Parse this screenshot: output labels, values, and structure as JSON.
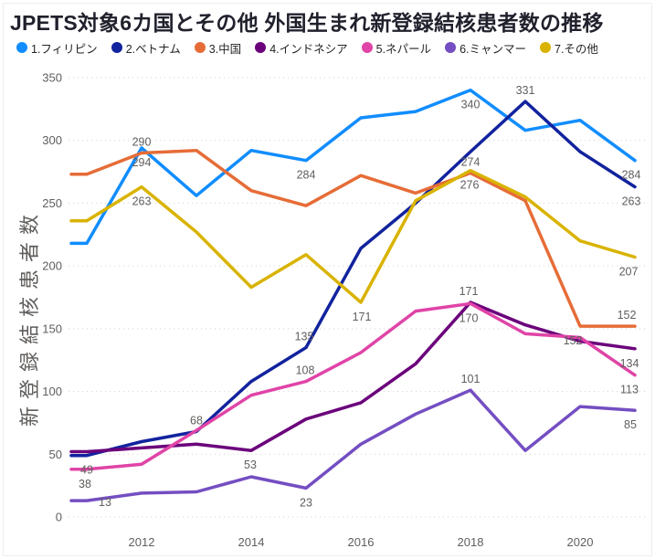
{
  "chart_data": {
    "type": "line",
    "title": "JPETS対象6カ国とその他 外国生まれ新登録結核患者数の推移",
    "ylabel": "新登録結核患者数",
    "xlabel": "",
    "x": [
      2011,
      2012,
      2013,
      2014,
      2015,
      2016,
      2017,
      2018,
      2019,
      2020,
      2021
    ],
    "x_tick_labels": [
      "2012",
      "2014",
      "2016",
      "2018",
      "2020"
    ],
    "ylim": [
      0,
      350
    ],
    "y_ticks": [
      0,
      50,
      100,
      150,
      200,
      250,
      300,
      350
    ],
    "grid": "horizontal-dotted",
    "legend_position": "top",
    "series": [
      {
        "name": "1.フィリピン",
        "color": "#118DFF",
        "values": [
          218,
          294,
          256,
          292,
          284,
          318,
          323,
          340,
          308,
          316,
          284
        ]
      },
      {
        "name": "2.ベトナム",
        "color": "#12239E",
        "values": [
          49,
          60,
          68,
          108,
          135,
          214,
          250,
          291,
          331,
          291,
          263
        ]
      },
      {
        "name": "3.中国",
        "color": "#E66C37",
        "values": [
          273,
          290,
          292,
          260,
          248,
          272,
          258,
          274,
          252,
          152,
          152
        ]
      },
      {
        "name": "4.インドネシア",
        "color": "#6B007B",
        "values": [
          52,
          55,
          58,
          53,
          78,
          91,
          122,
          171,
          153,
          140,
          134
        ]
      },
      {
        "name": "5.ネパール",
        "color": "#E044A7",
        "values": [
          38,
          42,
          69,
          97,
          108,
          131,
          164,
          170,
          146,
          143,
          113
        ]
      },
      {
        "name": "6.ミャンマー",
        "color": "#744EC2",
        "values": [
          13,
          19,
          20,
          32,
          23,
          58,
          82,
          101,
          53,
          88,
          85
        ]
      },
      {
        "name": "7.その他",
        "color": "#D9B300",
        "values": [
          236,
          263,
          227,
          183,
          209,
          171,
          252,
          276,
          255,
          220,
          207
        ]
      }
    ],
    "point_labels": [
      {
        "series": 0,
        "year": 2012,
        "value": 294,
        "pos": "below",
        "dx": 0
      },
      {
        "series": 0,
        "year": 2015,
        "value": 284,
        "pos": "below",
        "dx": 0
      },
      {
        "series": 0,
        "year": 2018,
        "value": 340,
        "pos": "below",
        "dx": 0
      },
      {
        "series": 0,
        "year": 2021,
        "value": 284,
        "pos": "below",
        "dx": -4
      },
      {
        "series": 1,
        "year": 2011,
        "value": 49,
        "pos": "below",
        "dx": 0
      },
      {
        "series": 1,
        "year": 2013,
        "value": 68,
        "pos": "above",
        "dx": 0
      },
      {
        "series": 1,
        "year": 2015,
        "value": 135,
        "pos": "above",
        "dx": -2
      },
      {
        "series": 1,
        "year": 2019,
        "value": 331,
        "pos": "above",
        "dx": 0
      },
      {
        "series": 1,
        "year": 2021,
        "value": 263,
        "pos": "below",
        "dx": -4
      },
      {
        "series": 2,
        "year": 2012,
        "value": 290,
        "pos": "above",
        "dx": 0
      },
      {
        "series": 2,
        "year": 2018,
        "value": 274,
        "pos": "above",
        "dx": 0
      },
      {
        "series": 2,
        "year": 2020,
        "value": 152,
        "pos": "below",
        "dx": -8
      },
      {
        "series": 2,
        "year": 2021,
        "value": 152,
        "pos": "above",
        "dx": -9
      },
      {
        "series": 3,
        "year": 2014,
        "value": 53,
        "pos": "below",
        "dx": -1
      },
      {
        "series": 3,
        "year": 2018,
        "value": 171,
        "pos": "above",
        "dx": -2
      },
      {
        "series": 3,
        "year": 2021,
        "value": 134,
        "pos": "below",
        "dx": -6
      },
      {
        "series": 4,
        "year": 2011,
        "value": 38,
        "pos": "below",
        "dx": -2
      },
      {
        "series": 4,
        "year": 2015,
        "value": 108,
        "pos": "above",
        "dx": -1
      },
      {
        "series": 4,
        "year": 2018,
        "value": 170,
        "pos": "below",
        "dx": -2
      },
      {
        "series": 4,
        "year": 2021,
        "value": 113,
        "pos": "below",
        "dx": -6
      },
      {
        "series": 5,
        "year": 2011,
        "value": 13,
        "pos": "right",
        "dx": 0
      },
      {
        "series": 5,
        "year": 2015,
        "value": 23,
        "pos": "below",
        "dx": 0
      },
      {
        "series": 5,
        "year": 2018,
        "value": 101,
        "pos": "above",
        "dx": 0
      },
      {
        "series": 5,
        "year": 2021,
        "value": 85,
        "pos": "below",
        "dx": -5
      },
      {
        "series": 6,
        "year": 2012,
        "value": 263,
        "pos": "below",
        "dx": 0
      },
      {
        "series": 6,
        "year": 2016,
        "value": 171,
        "pos": "below",
        "dx": 1
      },
      {
        "series": 6,
        "year": 2018,
        "value": 276,
        "pos": "below",
        "dx": -1
      },
      {
        "series": 6,
        "year": 2021,
        "value": 207,
        "pos": "below",
        "dx": -7
      }
    ]
  },
  "style": {
    "title_color": "#21212d",
    "axis_text_color": "#605E5C",
    "data_label_color": "#605E5C",
    "grid_color": "#D2D0CE",
    "background": "#FFFFFF"
  }
}
